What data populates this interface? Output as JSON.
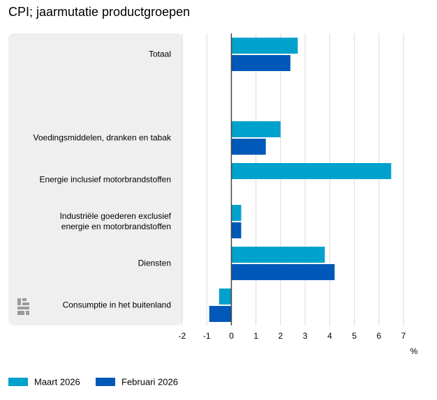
{
  "chart_data": {
    "type": "bar",
    "orientation": "horizontal",
    "title": "CPI; jaarmutatie productgroepen",
    "categories": [
      "Totaal",
      null,
      "Voedingsmiddelen, dranken en tabak",
      "Energie inclusief motorbrandstoffen",
      "Industriële goederen exclusief\nenergie en motorbrandstoffen",
      "Diensten",
      "Consumptie in het buitenland"
    ],
    "series": [
      {
        "name": "Maart 2026",
        "color": "#00a1cd",
        "values": [
          2.7,
          null,
          2.0,
          6.5,
          0.4,
          3.8,
          -0.5
        ]
      },
      {
        "name": "Februari 2026",
        "color": "#0058b8",
        "values": [
          2.4,
          null,
          1.4,
          null,
          0.4,
          4.2,
          -0.9
        ]
      }
    ],
    "xlim": [
      -2,
      7
    ],
    "xticks": [
      -2,
      -1,
      0,
      1,
      2,
      3,
      4,
      5,
      6,
      7
    ],
    "x_label": "%",
    "grid": true
  }
}
